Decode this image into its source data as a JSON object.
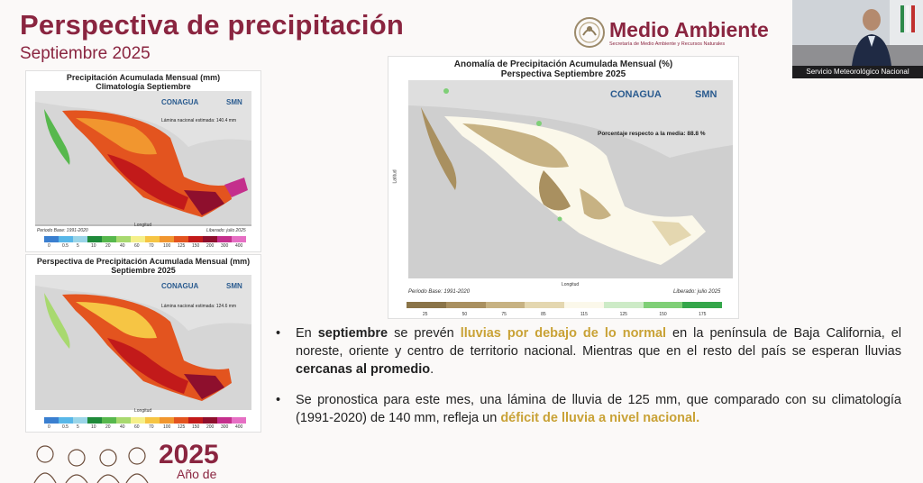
{
  "slide": {
    "title": "Perspectiva de precipitación",
    "subtitle": "Septiembre 2025"
  },
  "logo": {
    "name": "Medio Ambiente",
    "subname": "Secretaría de Medio Ambiente y Recursos Naturales"
  },
  "webcam": {
    "caption": "Servicio Meteorológico Nacional"
  },
  "map1": {
    "title_line1": "Precipitación Acumulada Mensual (mm)",
    "title_line2": "Climatología Septiembre",
    "note": "Lámina nacional estimada: 140.4 mm",
    "base": "Periodo Base: 1991-2020",
    "released": "Liberado: julio 2025",
    "xlabel": "Longitud",
    "legend_labels": [
      "0",
      "0.5",
      "5",
      "10",
      "20",
      "40",
      "60",
      "70",
      "100",
      "125",
      "150",
      "200",
      "300",
      "400"
    ],
    "legend_colors": [
      "#3a7fd0",
      "#58b7e8",
      "#9ad5e8",
      "#1f8a3a",
      "#57b84d",
      "#a8d96f",
      "#f5f08a",
      "#f6c544",
      "#f1962f",
      "#e3541f",
      "#c21a1a",
      "#8e0f2d",
      "#c42f8c",
      "#e66fc4"
    ]
  },
  "map2": {
    "title_line1": "Perspectiva de Precipitación Acumulada Mensual (mm)",
    "title_line2": "Septiembre 2025",
    "note": "Lámina nacional estimada: 124.6 mm",
    "xlabel": "Longitud",
    "legend_labels": [
      "0",
      "0.5",
      "5",
      "10",
      "20",
      "40",
      "60",
      "70",
      "100",
      "125",
      "150",
      "200",
      "300",
      "400"
    ]
  },
  "map3": {
    "title_line1": "Anomalía de Precipitación Acumulada Mensual (%)",
    "title_line2": "Perspectiva Septiembre 2025",
    "note": "Porcentaje respecto a la media: 88.8 %",
    "base": "Periodo Base: 1991-2020",
    "released": "Liberado: julio 2025",
    "xlabel": "Longitud",
    "ylabel": "Latitud",
    "legend_labels": [
      "25",
      "50",
      "75",
      "85",
      "115",
      "125",
      "150",
      "175"
    ],
    "legend_colors": [
      "#8a7448",
      "#a99060",
      "#c7b283",
      "#e4d7b0",
      "#fbf8ea",
      "#cdebc7",
      "#7fcf77",
      "#34a64a"
    ]
  },
  "brand": {
    "conagua": "CONAGUA",
    "smn": "SMN"
  },
  "bullets": {
    "b1_pre": "En ",
    "b1_bold": "septiembre",
    "b1_mid": " se prevén ",
    "b1_hl": "lluvias por debajo de lo normal",
    "b1_post": " en la península de Baja California, el noreste, oriente y centro de territorio nacional. Mientras que en el resto del país se esperan lluvias ",
    "b1_bold2": "cercanas al promedio",
    "b1_end": ".",
    "b2_pre": "Se pronostica para este mes, una lámina de lluvia de 125 mm, que comparado con su climatología (1991-2020) de 140 mm, refleja un ",
    "b2_hl": "déficit  de lluvia a nivel nacional.",
    "bullet_char": "•"
  },
  "footer": {
    "year": "2025",
    "year_sub": "Año de"
  }
}
